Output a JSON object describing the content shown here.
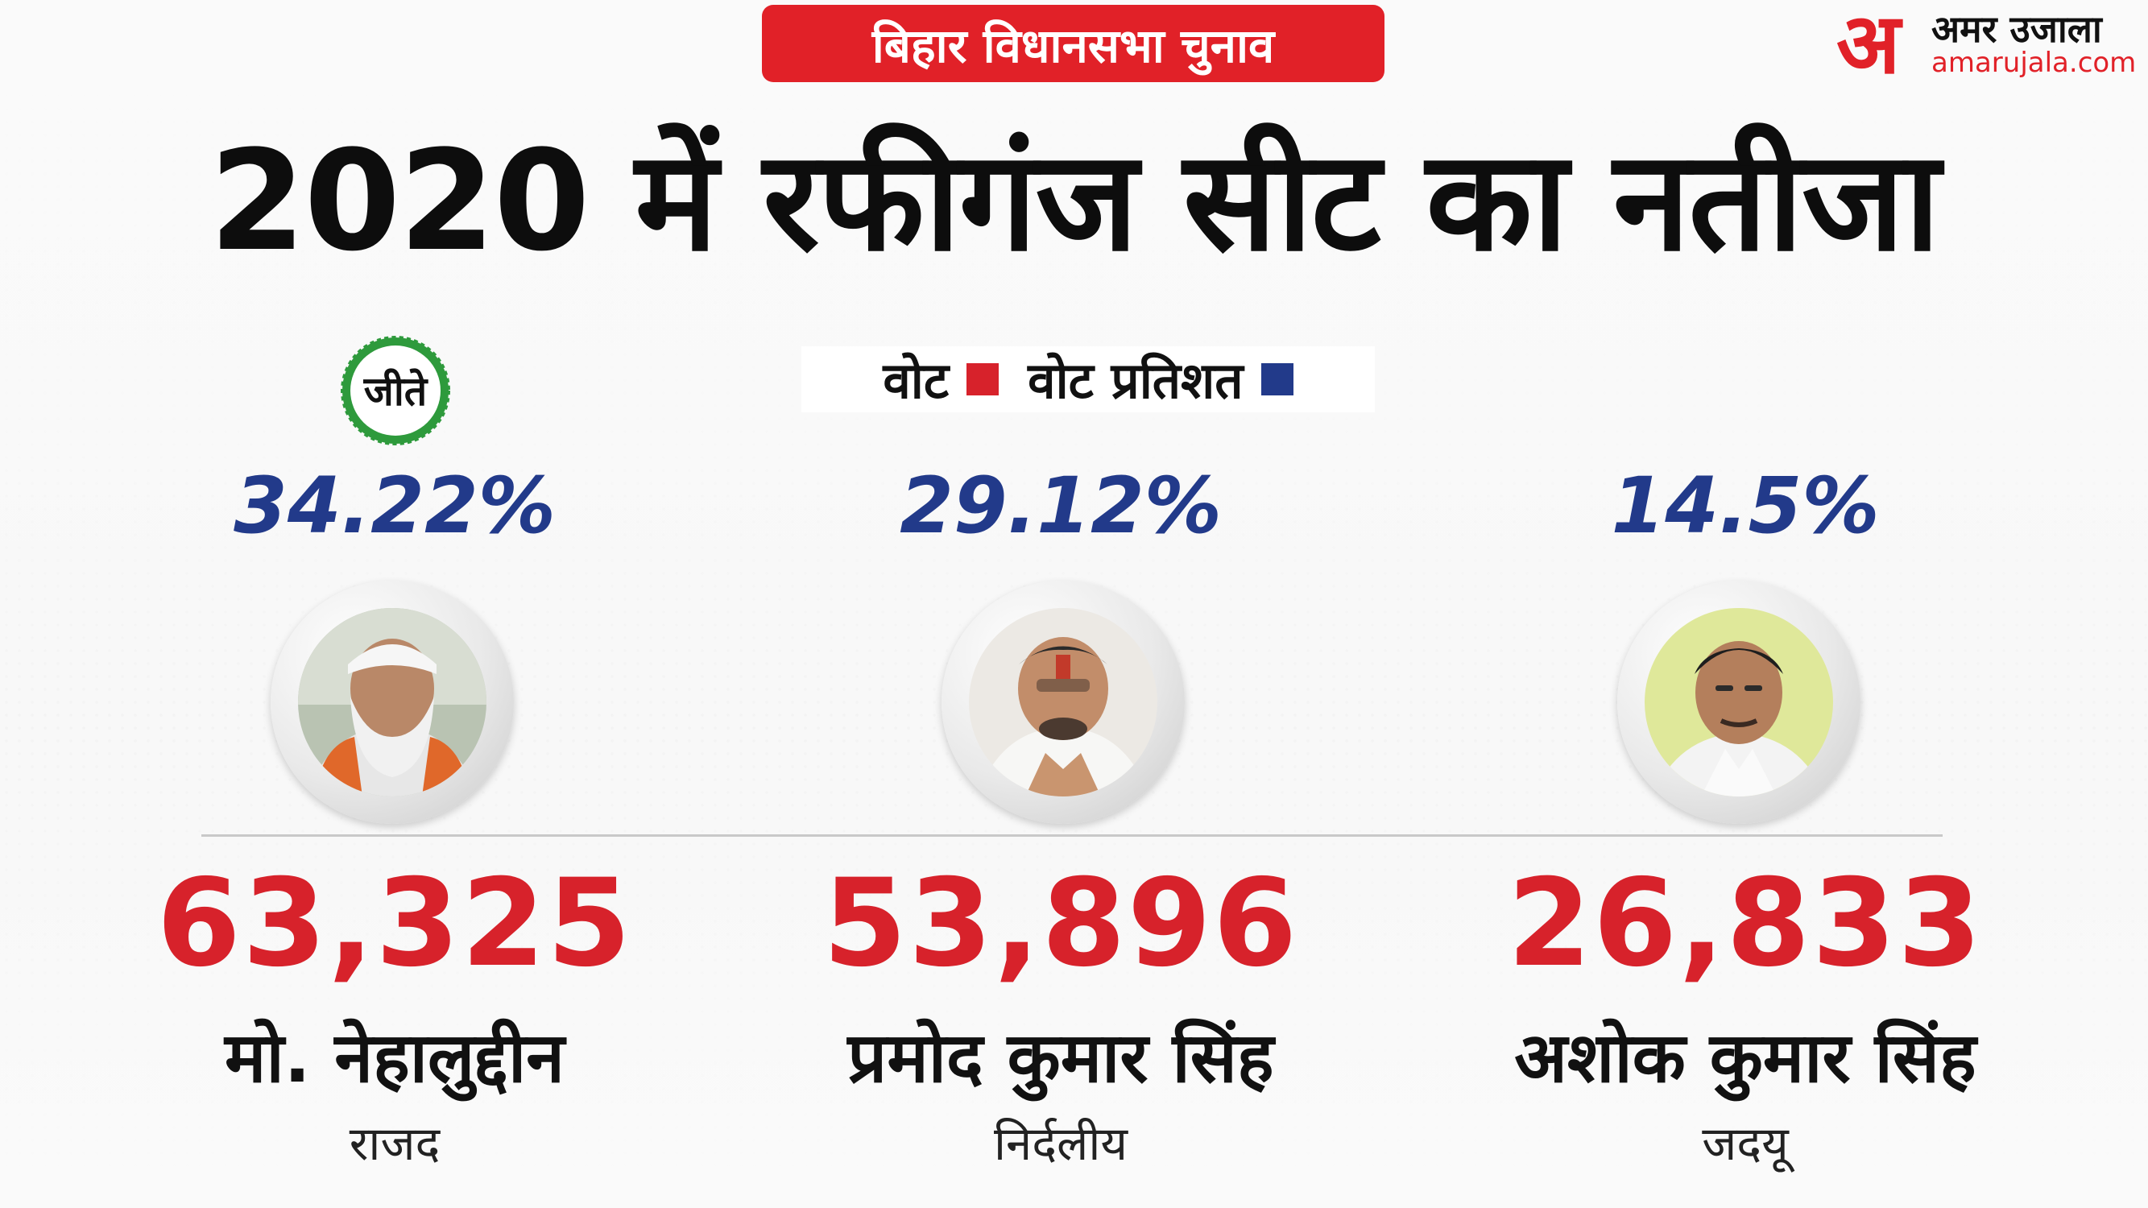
{
  "header": {
    "tag": "बिहार विधानसभा चुनाव",
    "title": "2020 में रफीगंज सीट का नतीजा"
  },
  "logo": {
    "mark": "अ",
    "name_hi": "अमर उजाला",
    "name_en": "amarujala.com"
  },
  "legend": {
    "votes_label": "वोट",
    "votes_color": "#d7222b",
    "percent_label": "वोट प्रतिशत",
    "percent_color": "#223a8a"
  },
  "winner_badge": "जीते",
  "candidates": [
    {
      "percent": "34.22%",
      "votes": "63,325",
      "name": "मो. नेहालुद्दीन",
      "party": "राजद",
      "winner": true
    },
    {
      "percent": "29.12%",
      "votes": "53,896",
      "name": "प्रमोद कुमार सिंह",
      "party": "निर्दलीय",
      "winner": false
    },
    {
      "percent": "14.5%",
      "votes": "26,833",
      "name": "अशोक कुमार सिंह",
      "party": "जदयू",
      "winner": false
    }
  ],
  "icons": [
    "winner-seal-icon",
    "candidate-photo"
  ]
}
